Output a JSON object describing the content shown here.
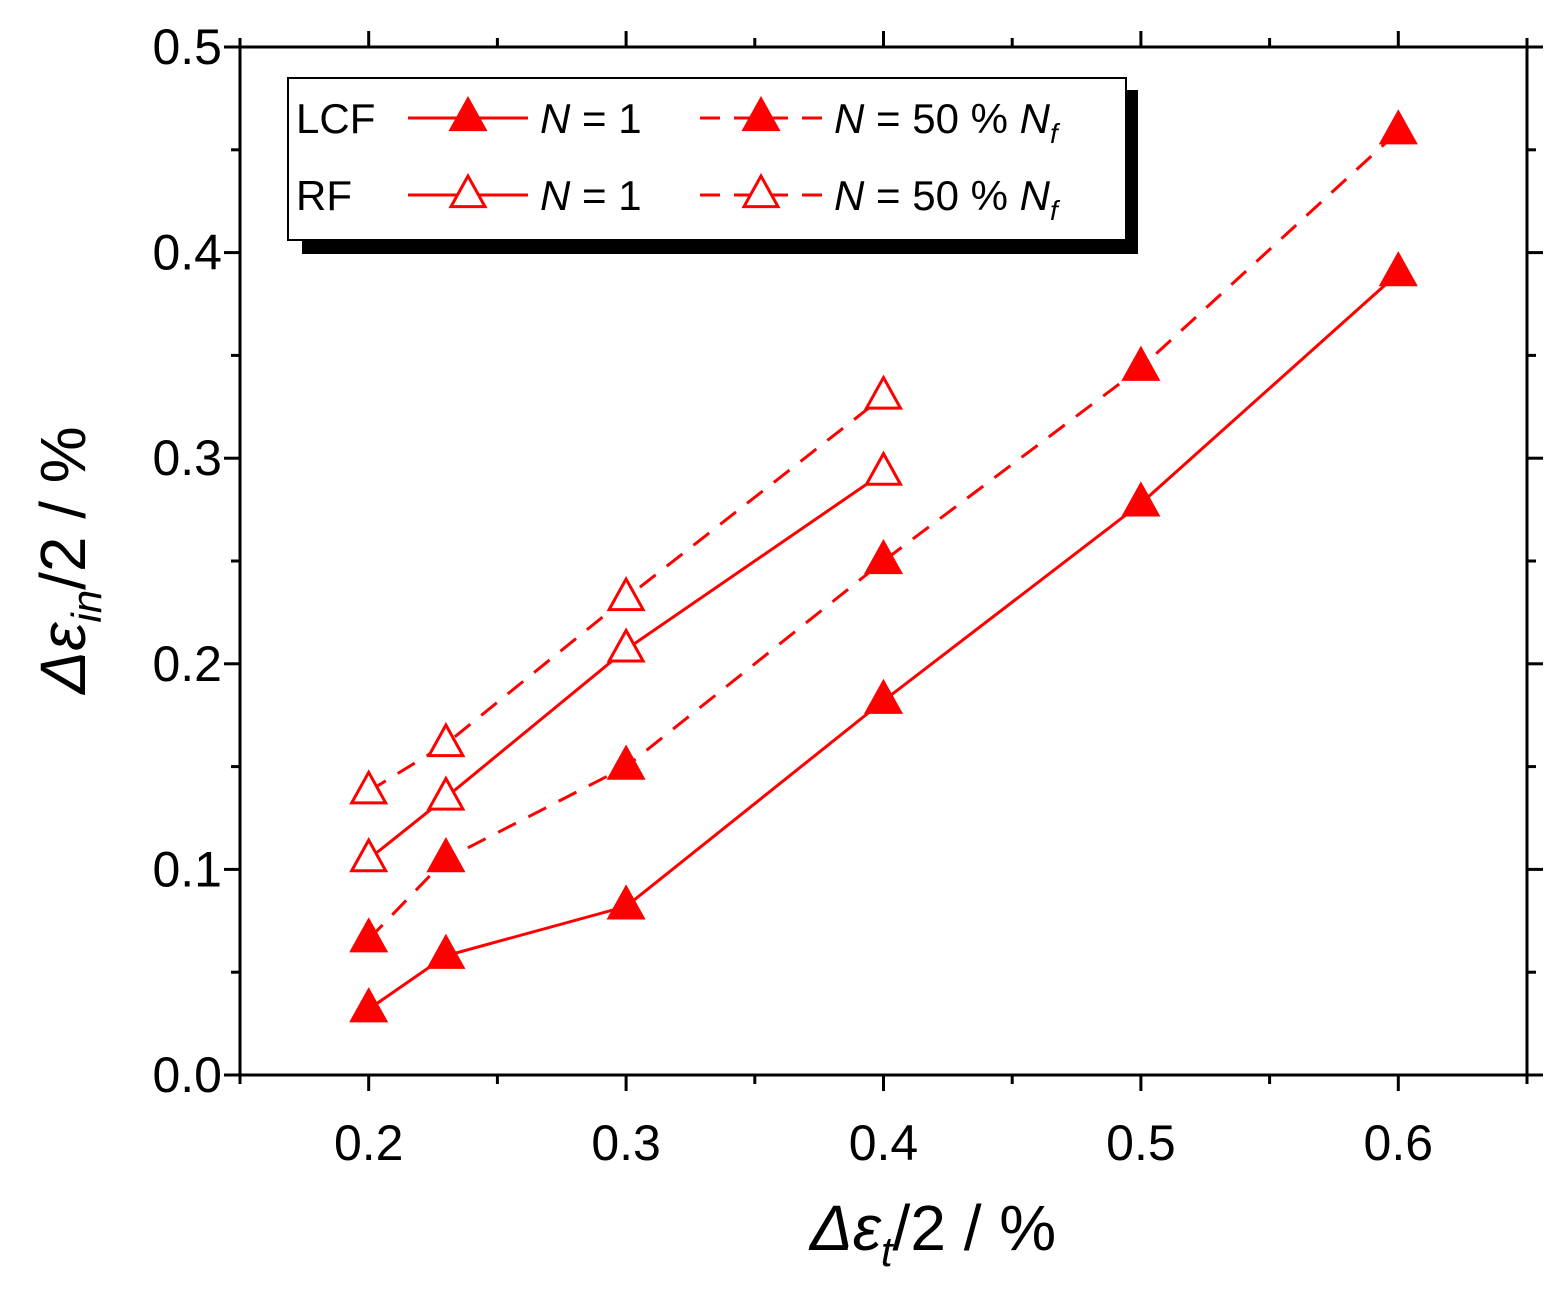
{
  "chart_data": {
    "type": "line",
    "xlabel": {
      "symbol": "Δε",
      "subscript": "t",
      "suffix": "/2 / %"
    },
    "ylabel": {
      "symbol": "Δε",
      "subscript": "in",
      "suffix": "/2 / %"
    },
    "xlim": [
      0.15,
      0.65
    ],
    "ylim": [
      0.0,
      0.5
    ],
    "xticks": [
      0.2,
      0.3,
      0.4,
      0.5,
      0.6
    ],
    "xtick_labels": [
      "0.2",
      "0.3",
      "0.4",
      "0.5",
      "0.6"
    ],
    "yticks": [
      0.0,
      0.1,
      0.2,
      0.3,
      0.4,
      0.5
    ],
    "ytick_labels": [
      "0.0",
      "0.1",
      "0.2",
      "0.3",
      "0.4",
      "0.5"
    ],
    "color": "#ff0000",
    "series": [
      {
        "name": "LCF N = 1",
        "group": "LCF",
        "marker": "filled-triangle",
        "dash": "solid",
        "x": [
          0.2,
          0.23,
          0.3,
          0.4,
          0.5,
          0.6
        ],
        "y": [
          0.032,
          0.058,
          0.082,
          0.182,
          0.278,
          0.39
        ]
      },
      {
        "name": "LCF N = 50 % Nf",
        "group": "LCF",
        "marker": "filled-triangle",
        "dash": "dashed",
        "x": [
          0.2,
          0.23,
          0.3,
          0.4,
          0.5,
          0.6
        ],
        "y": [
          0.066,
          0.105,
          0.15,
          0.25,
          0.344,
          0.459
        ]
      },
      {
        "name": "RF N = 1",
        "group": "RF",
        "marker": "open-triangle",
        "dash": "solid",
        "x": [
          0.2,
          0.23,
          0.3,
          0.4
        ],
        "y": [
          0.105,
          0.135,
          0.207,
          0.293
        ]
      },
      {
        "name": "RF N = 50 % Nf",
        "group": "RF",
        "marker": "open-triangle",
        "dash": "dashed",
        "x": [
          0.2,
          0.23,
          0.3,
          0.4
        ],
        "y": [
          0.138,
          0.161,
          0.232,
          0.33
        ]
      }
    ],
    "legend": {
      "placement": "top-left",
      "row_labels": [
        "LCF",
        "RF"
      ],
      "entry_n1": {
        "var": "N",
        "text": " = 1"
      },
      "entry_n50": {
        "var": "N",
        "text": " = 50 % ",
        "var2": "N",
        "sub": "f"
      }
    }
  }
}
